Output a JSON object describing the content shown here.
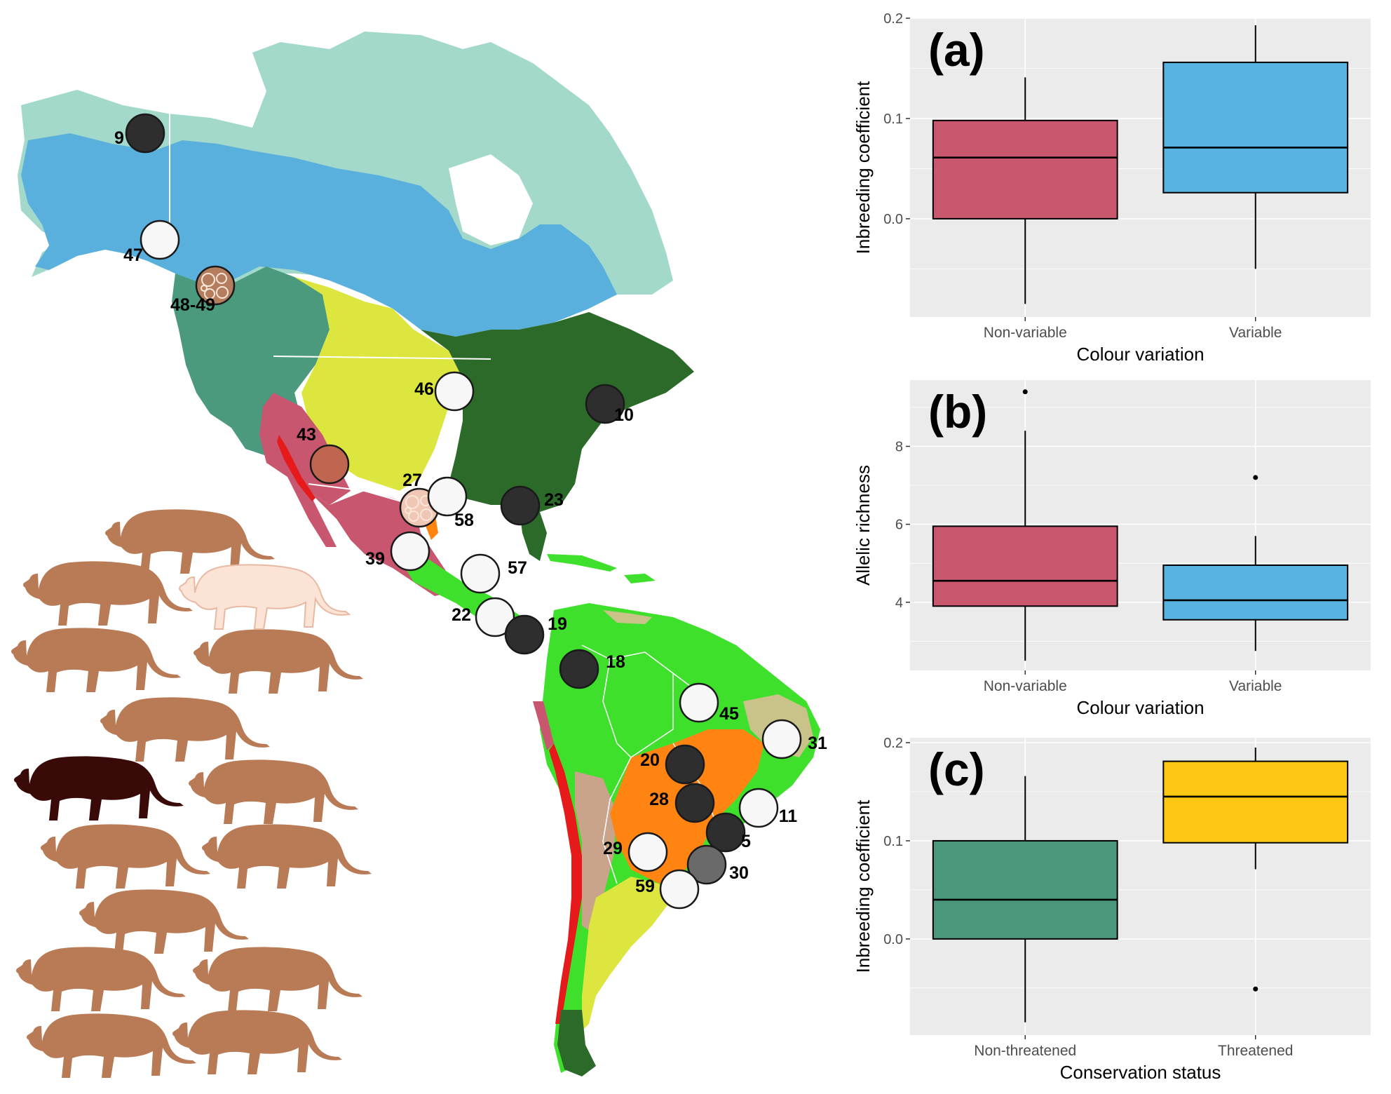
{
  "map": {
    "sites": [
      {
        "label": "9",
        "fill": "#2e2e2e",
        "pattern": false
      },
      {
        "label": "47",
        "fill": "#f7f7f7",
        "pattern": false
      },
      {
        "label": "48-49",
        "fill": "#b47e5e",
        "pattern": true
      },
      {
        "label": "46",
        "fill": "#f7f7f7",
        "pattern": false
      },
      {
        "label": "10",
        "fill": "#2e2e2e",
        "pattern": false
      },
      {
        "label": "43",
        "fill": "#c0654f",
        "pattern": false
      },
      {
        "label": "27",
        "fill": "#f0c7b4",
        "pattern": true
      },
      {
        "label": "58",
        "fill": "#f7f7f7",
        "pattern": false
      },
      {
        "label": "23",
        "fill": "#2e2e2e",
        "pattern": false
      },
      {
        "label": "39",
        "fill": "#f7f7f7",
        "pattern": false
      },
      {
        "label": "57",
        "fill": "#f7f7f7",
        "pattern": false
      },
      {
        "label": "22",
        "fill": "#f7f7f7",
        "pattern": false
      },
      {
        "label": "19",
        "fill": "#2e2e2e",
        "pattern": false
      },
      {
        "label": "18",
        "fill": "#2e2e2e",
        "pattern": false
      },
      {
        "label": "45",
        "fill": "#f7f7f7",
        "pattern": false
      },
      {
        "label": "31",
        "fill": "#f7f7f7",
        "pattern": false
      },
      {
        "label": "20",
        "fill": "#2e2e2e",
        "pattern": false
      },
      {
        "label": "28",
        "fill": "#2e2e2e",
        "pattern": false
      },
      {
        "label": "11",
        "fill": "#f7f7f7",
        "pattern": false
      },
      {
        "label": "5",
        "fill": "#2e2e2e",
        "pattern": false
      },
      {
        "label": "29",
        "fill": "#f7f7f7",
        "pattern": false
      },
      {
        "label": "30",
        "fill": "#6a6a6a",
        "pattern": false
      },
      {
        "label": "59",
        "fill": "#f7f7f7",
        "pattern": false
      }
    ],
    "colors": {
      "tundra": "#a3d9cb",
      "boreal": "#5ab0dc",
      "temperate_conifer": "#4c9a7e",
      "grassland": "#dde63f",
      "temperate_broadleaf": "#2c6a2a",
      "desert": "#c8566e",
      "tropical_moist": "#3fe02c",
      "tropical_dry": "#ff8412",
      "savanna": "#c9c38a",
      "mangrove_red": "#e61a1a",
      "ocean": "#ffffff"
    },
    "silhouettes": {
      "count_brown": 13,
      "brown": "#b97a56",
      "pale": "#fbe3d6",
      "dark": "#3a0a08"
    }
  },
  "chart_data": [
    {
      "type": "box",
      "panel": "(a)",
      "xlabel": "Colour variation",
      "ylabel": "Inbreeding coefficient",
      "ylim": [
        -0.098,
        0.2
      ],
      "yticks": [
        0.0,
        0.1,
        0.2
      ],
      "ytick_labels": [
        "0.0",
        "0.1",
        "0.2"
      ],
      "categories": [
        "Non-variable",
        "Variable"
      ],
      "boxes": [
        {
          "category": "Non-variable",
          "min": -0.085,
          "q1": 0.0,
          "median": 0.061,
          "q3": 0.098,
          "max": 0.141,
          "outliers": [],
          "color": "#c9586f"
        },
        {
          "category": "Variable",
          "min": -0.05,
          "q1": 0.026,
          "median": 0.071,
          "q3": 0.156,
          "max": 0.193,
          "outliers": [],
          "color": "#58b3e0"
        }
      ]
    },
    {
      "type": "box",
      "panel": "(b)",
      "xlabel": "Colour variation",
      "ylabel": "Allelic richness",
      "ylim": [
        2.25,
        9.7
      ],
      "yticks": [
        4,
        6,
        8
      ],
      "ytick_labels": [
        "4",
        "6",
        "8"
      ],
      "categories": [
        "Non-variable",
        "Variable"
      ],
      "boxes": [
        {
          "category": "Non-variable",
          "min": 2.5,
          "q1": 3.9,
          "median": 4.55,
          "q3": 5.95,
          "max": 8.4,
          "outliers": [
            9.4
          ],
          "color": "#c9586f"
        },
        {
          "category": "Variable",
          "min": 2.75,
          "q1": 3.55,
          "median": 4.05,
          "q3": 4.95,
          "max": 5.7,
          "outliers": [
            7.2
          ],
          "color": "#58b3e0"
        }
      ]
    },
    {
      "type": "box",
      "panel": "(c)",
      "xlabel": "Conservation status",
      "ylabel": "Inbreeding coefficient",
      "ylim": [
        -0.098,
        0.205
      ],
      "yticks": [
        0.0,
        0.1,
        0.2
      ],
      "ytick_labels": [
        "0.0",
        "0.1",
        "0.2"
      ],
      "categories": [
        "Non-threatened",
        "Threatened"
      ],
      "boxes": [
        {
          "category": "Non-threatened",
          "min": -0.085,
          "q1": 0.0,
          "median": 0.04,
          "q3": 0.1,
          "max": 0.166,
          "outliers": [],
          "color": "#4b977b"
        },
        {
          "category": "Threatened",
          "min": 0.071,
          "q1": 0.098,
          "median": 0.145,
          "q3": 0.181,
          "max": 0.195,
          "outliers": [
            -0.051
          ],
          "color": "#fdc713"
        }
      ]
    }
  ]
}
